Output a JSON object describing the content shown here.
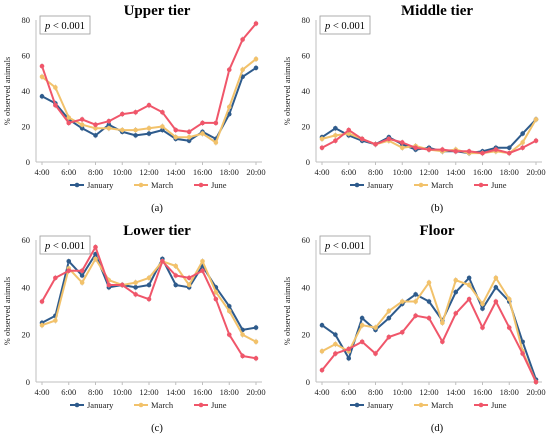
{
  "chart_data": [
    {
      "type": "line",
      "title": "Upper tier",
      "panel_label": "(a)",
      "annotation": "p < 0.001",
      "ylabel": "% observed animals",
      "ylim": [
        0,
        80
      ],
      "yticks": [
        0,
        20,
        40,
        60,
        80
      ],
      "x": [
        "4:00",
        "5:00",
        "6:00",
        "7:00",
        "8:00",
        "9:00",
        "10:00",
        "11:00",
        "12:00",
        "13:00",
        "14:00",
        "15:00",
        "16:00",
        "17:00",
        "18:00",
        "19:00",
        "20:00"
      ],
      "xtick_labels": [
        "4:00",
        "6:00",
        "8:00",
        "10:00",
        "12:00",
        "14:00",
        "16:00",
        "18:00",
        "20:00"
      ],
      "legend_position": "bottom",
      "series": [
        {
          "name": "January",
          "color": "#2e5b8c",
          "values": [
            37,
            33,
            24,
            19,
            15,
            21,
            17,
            15,
            16,
            18,
            13,
            12,
            17,
            13,
            27,
            48,
            53
          ]
        },
        {
          "name": "March",
          "color": "#f2c26b",
          "values": [
            48,
            42,
            25,
            21,
            19,
            19,
            18,
            18,
            19,
            20,
            14,
            14,
            16,
            11,
            31,
            52,
            58
          ]
        },
        {
          "name": "June",
          "color": "#f0566a",
          "values": [
            54,
            32,
            22,
            24,
            21,
            23,
            27,
            28,
            32,
            28,
            18,
            17,
            22,
            22,
            52,
            69,
            78
          ]
        }
      ]
    },
    {
      "type": "line",
      "title": "Middle tier",
      "panel_label": "(b)",
      "annotation": "p < 0.001",
      "ylabel": "% observed animals",
      "ylim": [
        0,
        80
      ],
      "yticks": [
        0,
        20,
        40,
        60,
        80
      ],
      "x": [
        "4:00",
        "5:00",
        "6:00",
        "7:00",
        "8:00",
        "9:00",
        "10:00",
        "11:00",
        "12:00",
        "13:00",
        "14:00",
        "15:00",
        "16:00",
        "17:00",
        "18:00",
        "19:00",
        "20:00"
      ],
      "xtick_labels": [
        "4:00",
        "6:00",
        "8:00",
        "10:00",
        "12:00",
        "14:00",
        "16:00",
        "18:00",
        "20:00"
      ],
      "legend_position": "bottom",
      "series": [
        {
          "name": "January",
          "color": "#2e5b8c",
          "values": [
            14,
            19,
            15,
            12,
            10,
            14,
            10,
            7,
            8,
            6,
            6,
            5,
            6,
            8,
            8,
            16,
            24
          ]
        },
        {
          "name": "March",
          "color": "#f2c26b",
          "values": [
            13,
            15,
            16,
            13,
            10,
            12,
            8,
            9,
            7,
            6,
            7,
            5,
            5,
            6,
            5,
            11,
            24
          ]
        },
        {
          "name": "June",
          "color": "#f0566a",
          "values": [
            8,
            12,
            18,
            13,
            10,
            13,
            11,
            8,
            7,
            7,
            6,
            6,
            5,
            7,
            5,
            8,
            12
          ]
        }
      ]
    },
    {
      "type": "line",
      "title": "Lower tier",
      "panel_label": "(c)",
      "annotation": "p < 0.001",
      "ylabel": "% observed animals",
      "ylim": [
        0,
        60
      ],
      "yticks": [
        0,
        20,
        40,
        60
      ],
      "x": [
        "4:00",
        "5:00",
        "6:00",
        "7:00",
        "8:00",
        "9:00",
        "10:00",
        "11:00",
        "12:00",
        "13:00",
        "14:00",
        "15:00",
        "16:00",
        "17:00",
        "18:00",
        "19:00",
        "20:00"
      ],
      "xtick_labels": [
        "4:00",
        "6:00",
        "8:00",
        "10:00",
        "12:00",
        "14:00",
        "16:00",
        "18:00",
        "20:00"
      ],
      "legend_position": "bottom",
      "series": [
        {
          "name": "January",
          "color": "#2e5b8c",
          "values": [
            25,
            28,
            51,
            45,
            54,
            40,
            41,
            40,
            41,
            52,
            41,
            40,
            49,
            40,
            32,
            22,
            23
          ]
        },
        {
          "name": "March",
          "color": "#f2c26b",
          "values": [
            24,
            26,
            48,
            42,
            52,
            43,
            41,
            42,
            44,
            51,
            49,
            41,
            51,
            38,
            30,
            20,
            17
          ]
        },
        {
          "name": "June",
          "color": "#f0566a",
          "values": [
            34,
            44,
            47,
            47,
            57,
            41,
            41,
            37,
            35,
            51,
            45,
            44,
            47,
            35,
            20,
            11,
            10
          ]
        }
      ]
    },
    {
      "type": "line",
      "title": "Floor",
      "panel_label": "(d)",
      "annotation": "p < 0.001",
      "ylabel": "% observed animals",
      "ylim": [
        0,
        60
      ],
      "yticks": [
        0,
        20,
        40,
        60
      ],
      "x": [
        "4:00",
        "5:00",
        "6:00",
        "7:00",
        "8:00",
        "9:00",
        "10:00",
        "11:00",
        "12:00",
        "13:00",
        "14:00",
        "15:00",
        "16:00",
        "17:00",
        "18:00",
        "19:00",
        "20:00"
      ],
      "xtick_labels": [
        "4:00",
        "6:00",
        "8:00",
        "10:00",
        "12:00",
        "14:00",
        "16:00",
        "18:00",
        "20:00"
      ],
      "legend_position": "bottom",
      "series": [
        {
          "name": "January",
          "color": "#2e5b8c",
          "values": [
            24,
            20,
            10,
            27,
            22,
            27,
            33,
            37,
            34,
            26,
            38,
            44,
            31,
            40,
            34,
            17,
            1
          ]
        },
        {
          "name": "March",
          "color": "#f2c26b",
          "values": [
            13,
            16,
            13,
            24,
            23,
            30,
            34,
            34,
            42,
            25,
            43,
            41,
            33,
            44,
            35,
            13,
            0
          ]
        },
        {
          "name": "June",
          "color": "#f0566a",
          "values": [
            5,
            12,
            14,
            17,
            12,
            19,
            21,
            28,
            27,
            17,
            29,
            35,
            23,
            34,
            23,
            12,
            0
          ]
        }
      ]
    }
  ]
}
